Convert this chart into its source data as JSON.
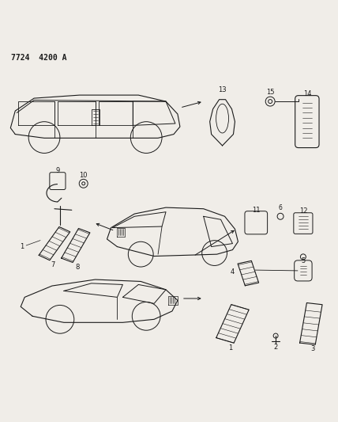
{
  "title": "7724  4200 A",
  "bg_color": "#f0ede8",
  "line_color": "#1a1a1a",
  "fig_width": 4.28,
  "fig_height": 5.33,
  "dpi": 100
}
